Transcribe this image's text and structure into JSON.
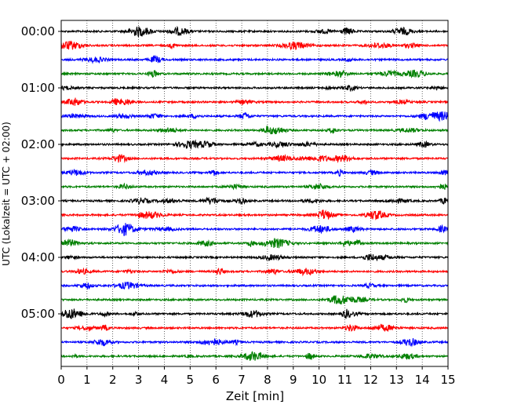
{
  "chart_data": {
    "type": "line",
    "title": "",
    "xlabel": "Zeit  [min]",
    "ylabel": "UTC (Lokalzeit = UTC + 02:00)",
    "xlim": [
      0,
      15
    ],
    "x_ticks": [
      0,
      1,
      2,
      3,
      4,
      5,
      6,
      7,
      8,
      9,
      10,
      11,
      12,
      13,
      14,
      15
    ],
    "x_tick_labels": [
      "0",
      "1",
      "2",
      "3",
      "4",
      "5",
      "6",
      "7",
      "8",
      "9",
      "10",
      "11",
      "12",
      "13",
      "14",
      "15"
    ],
    "y_tick_labels": [
      "00:00",
      "01:00",
      "02:00",
      "03:00",
      "04:00",
      "05:00"
    ],
    "vertical_grid": "dotted, every minute",
    "row_interval_minutes": 15,
    "row_count": 24,
    "row_colors": [
      "#000000",
      "#ff0000",
      "#0000ff",
      "#008000"
    ],
    "series_kind": "seismogram traces (helicorder), one 15-minute line per row"
  }
}
